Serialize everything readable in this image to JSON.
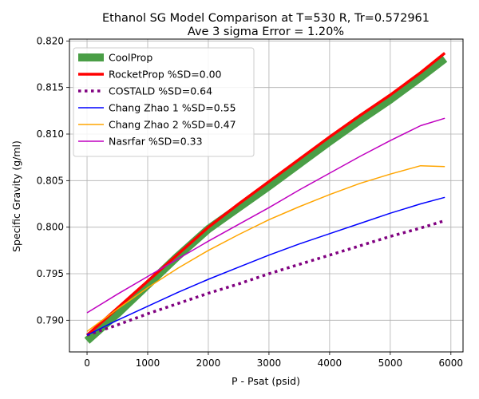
{
  "chart_data": {
    "type": "line",
    "title": "Ethanol SG Model Comparison at T=530 R, Tr=0.572961",
    "subtitle": "Ave 3 sigma Error = 1.20%",
    "xlabel": "P - Psat (psid)",
    "ylabel": "Specific Gravity (g/ml)",
    "xlim": [
      -290,
      6200
    ],
    "ylim": [
      0.7866,
      0.8202
    ],
    "xticks": [
      0,
      1000,
      2000,
      3000,
      4000,
      5000,
      6000
    ],
    "xtick_labels": [
      "0",
      "1000",
      "2000",
      "3000",
      "4000",
      "5000",
      "6000"
    ],
    "yticks": [
      0.79,
      0.795,
      0.8,
      0.805,
      0.81,
      0.815,
      0.82
    ],
    "ytick_labels": [
      "0.790",
      "0.795",
      "0.800",
      "0.805",
      "0.810",
      "0.815",
      "0.820"
    ],
    "grid": true,
    "legend_position": "top-left",
    "x": [
      0,
      500,
      1000,
      1500,
      2000,
      2500,
      3000,
      3500,
      4000,
      4500,
      5000,
      5500,
      5900
    ],
    "series": [
      {
        "name": "CoolProp",
        "color": "#4a9e46",
        "style": "solid-thick",
        "values": [
          0.7878,
          0.7907,
          0.7938,
          0.7969,
          0.7998,
          0.8021,
          0.8044,
          0.8068,
          0.8092,
          0.8115,
          0.8137,
          0.8161,
          0.8181
        ]
      },
      {
        "name": "RocketProp %SD=0.00",
        "color": "#ff0000",
        "style": "solid-medium",
        "values": [
          0.7884,
          0.7913,
          0.7942,
          0.7971,
          0.8,
          0.8025,
          0.8049,
          0.8073,
          0.8097,
          0.812,
          0.8142,
          0.8166,
          0.8187
        ]
      },
      {
        "name": "COSTALD %SD=0.64",
        "color": "#800080",
        "style": "dotted",
        "values": [
          0.7884,
          0.7895,
          0.7907,
          0.7918,
          0.7929,
          0.7939,
          0.795,
          0.796,
          0.797,
          0.798,
          0.799,
          0.7999,
          0.8007
        ]
      },
      {
        "name": "Chang Zhao 1 %SD=0.55",
        "color": "#0000ff",
        "style": "solid-thin",
        "values": [
          0.7884,
          0.79,
          0.7915,
          0.793,
          0.7944,
          0.7957,
          0.797,
          0.7982,
          0.7993,
          0.8004,
          0.8015,
          0.8025,
          0.8032
        ]
      },
      {
        "name": "Chang Zhao 2 %SD=0.47",
        "color": "#ffa500",
        "style": "solid-thin",
        "values": [
          0.7888,
          0.7912,
          0.7935,
          0.7956,
          0.7975,
          0.7992,
          0.8008,
          0.8022,
          0.8035,
          0.8047,
          0.8057,
          0.8066,
          0.8065
        ]
      },
      {
        "name": "Nasrfar %SD=0.33",
        "color": "#c000c0",
        "style": "solid-thin",
        "values": [
          0.7908,
          0.7928,
          0.7947,
          0.7966,
          0.7985,
          0.8003,
          0.8021,
          0.804,
          0.8058,
          0.8076,
          0.8093,
          0.8109,
          0.8117
        ]
      }
    ]
  }
}
